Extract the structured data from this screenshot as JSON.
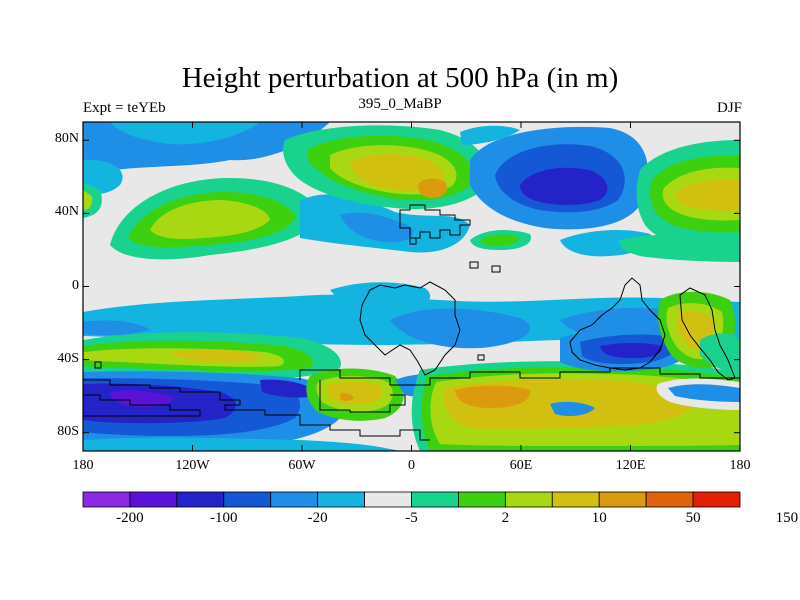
{
  "title": "Height perturbation at 500 hPa (in m)",
  "left_label": "Expt = teYEb",
  "center_label": "395_0_MaBP",
  "right_label": "DJF",
  "map": {
    "x_ticks": [
      {
        "value": -180,
        "label": "180"
      },
      {
        "value": -120,
        "label": "120W"
      },
      {
        "value": -60,
        "label": "60W"
      },
      {
        "value": 0,
        "label": "0"
      },
      {
        "value": 60,
        "label": "60E"
      },
      {
        "value": 120,
        "label": "120E"
      },
      {
        "value": 180,
        "label": "180"
      }
    ],
    "y_ticks": [
      {
        "value": 80,
        "label": "80N"
      },
      {
        "value": 40,
        "label": "40N"
      },
      {
        "value": 0,
        "label": "0"
      },
      {
        "value": -40,
        "label": "40S"
      },
      {
        "value": -80,
        "label": "80S"
      }
    ],
    "lon_range": [
      -180,
      180
    ],
    "lat_range": [
      -90,
      90
    ]
  },
  "colorbar": {
    "colors": [
      "#8a2be2",
      "#5a12d8",
      "#2323c8",
      "#1558d6",
      "#1e8ee6",
      "#14b4e0",
      "#e8e8e8",
      "#18d28e",
      "#3cd010",
      "#a8d812",
      "#d2c010",
      "#dc9a0e",
      "#e0640a",
      "#e41e04"
    ],
    "labels": [
      {
        "text": "-200",
        "index": 1
      },
      {
        "text": "-100",
        "index": 3
      },
      {
        "text": "-20",
        "index": 5
      },
      {
        "text": "-5",
        "index": 7
      },
      {
        "text": "2",
        "index": 9
      },
      {
        "text": "10",
        "index": 11
      },
      {
        "text": "50",
        "index": 13
      },
      {
        "text": "150",
        "index": 15
      }
    ]
  }
}
